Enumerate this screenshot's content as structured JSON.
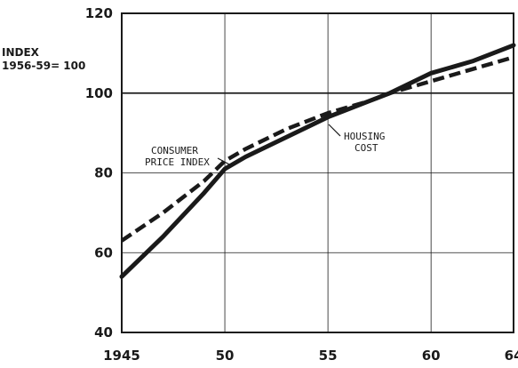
{
  "chart_data": {
    "type": "line",
    "ylabel_line1": "INDEX",
    "ylabel_line2": "1956-59= 100",
    "x_ticks": [
      "1945",
      "50",
      "55",
      "60",
      "64"
    ],
    "y_ticks": [
      "120",
      "100",
      "80",
      "60",
      "40"
    ],
    "xlim": [
      1945,
      1964
    ],
    "ylim": [
      40,
      120
    ],
    "grid": true,
    "reference_line": 100,
    "series": [
      {
        "name": "HOUSING COST",
        "style": "solid",
        "color": "#1a1a1a",
        "x": [
          1945,
          1947,
          1949,
          1950,
          1951,
          1953,
          1955,
          1957,
          1958,
          1960,
          1962,
          1964
        ],
        "y": [
          54,
          64,
          75,
          81,
          84,
          89,
          94,
          98,
          100,
          105,
          108,
          112
        ]
      },
      {
        "name": "CONSUMER PRICE INDEX",
        "style": "dashed",
        "color": "#1a1a1a",
        "x": [
          1945,
          1947,
          1949,
          1950,
          1951,
          1953,
          1955,
          1957,
          1958,
          1960,
          1962,
          1964
        ],
        "y": [
          63,
          70,
          78,
          83,
          86,
          91,
          95,
          98,
          100,
          103,
          106,
          109
        ]
      }
    ],
    "annotations": [
      {
        "series": "CONSUMER PRICE INDEX",
        "lines": [
          "CONSUMER",
          "PRICE INDEX"
        ]
      },
      {
        "series": "HOUSING COST",
        "lines": [
          "HOUSING",
          "COST"
        ]
      }
    ]
  }
}
